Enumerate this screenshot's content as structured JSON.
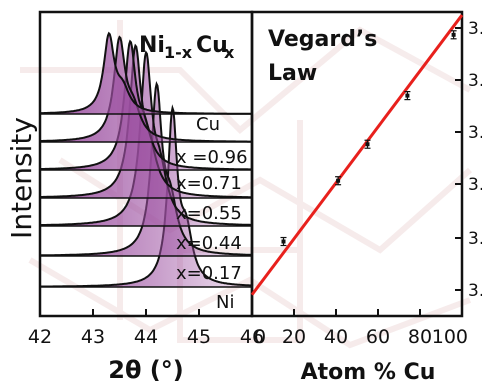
{
  "chart_data": [
    {
      "type": "area",
      "title": "Ni1-xCux",
      "title_parts": {
        "base": "Ni",
        "sub1": "1-x",
        "mid": "Cu",
        "sub2": "x"
      },
      "xlabel": "2θ (°)",
      "ylabel": "Intensity",
      "xlim": [
        42,
        46
      ],
      "xticks": [
        "42",
        "43",
        "44",
        "45",
        "46"
      ],
      "series": [
        {
          "label": "Ni",
          "peak_x": 44.5
        },
        {
          "label": "x=0.17",
          "peak_x": 44.2
        },
        {
          "label": "x=0.44",
          "peak_x": 44.0
        },
        {
          "label": "x=0.55",
          "peak_x": 43.8
        },
        {
          "label": "x=0.71",
          "peak_x": 43.7
        },
        {
          "label": "x =0.96",
          "peak_x": 43.5
        },
        {
          "label": "Cu",
          "peak_x": 43.3
        }
      ],
      "fill_color": "#9b4ea0",
      "line_color": "#111111"
    },
    {
      "type": "scatter",
      "title": "Vegard’s Law",
      "title_lines": [
        "Vegard’s",
        "Law"
      ],
      "xlabel": "Atom % Cu",
      "xlim": [
        0,
        100
      ],
      "xticks": [
        "0",
        "20",
        "40",
        "60",
        "80",
        "100"
      ],
      "ylim": [
        0,
        1
      ],
      "y_tick_labels": [
        "3.",
        "3.",
        "3.",
        "3.",
        "3.",
        "3.",
        "3."
      ],
      "points": [
        {
          "x": 15,
          "y": 0.245
        },
        {
          "x": 41,
          "y": 0.445
        },
        {
          "x": 55,
          "y": 0.565
        },
        {
          "x": 74,
          "y": 0.725
        },
        {
          "x": 96,
          "y": 0.925
        }
      ],
      "fit_line": {
        "x": [
          0,
          100
        ],
        "y": [
          0.07,
          0.99
        ]
      },
      "fit_color": "#e8201c",
      "marker_color": "#111111"
    }
  ],
  "watermark_color": "#c98a8a"
}
